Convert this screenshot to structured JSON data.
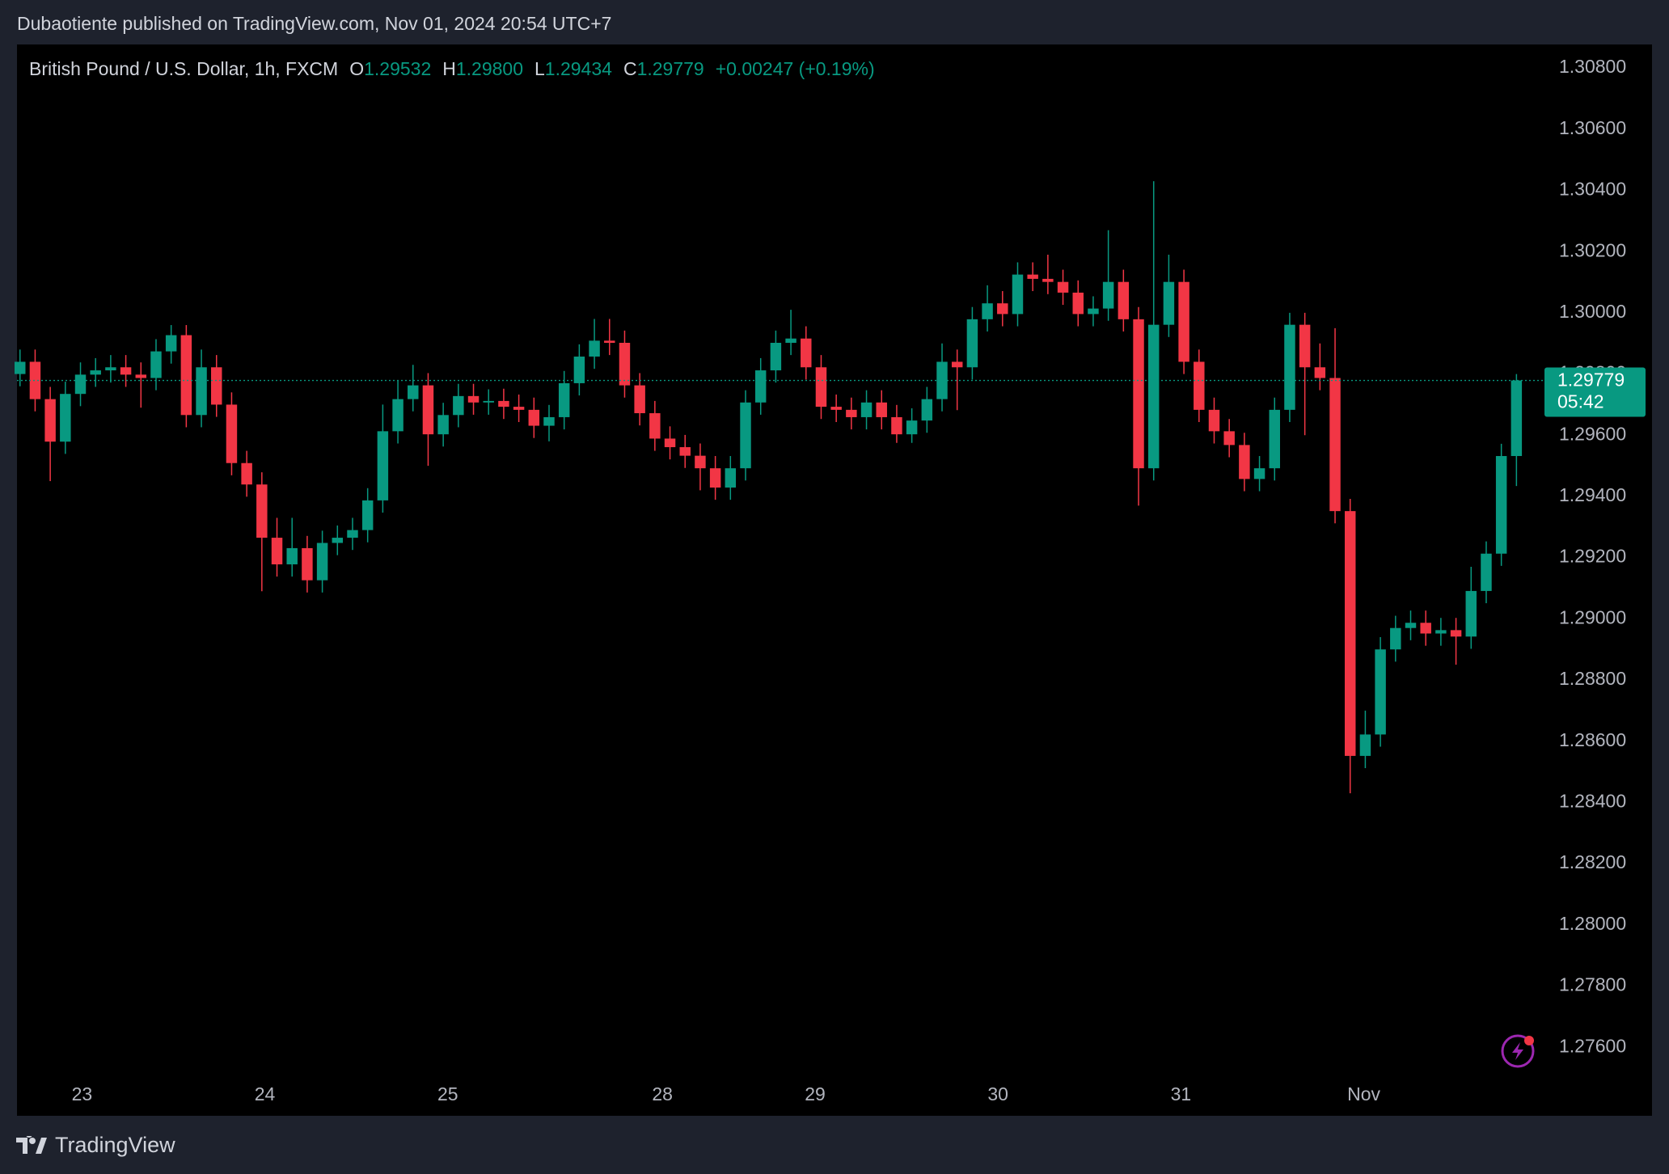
{
  "header": {
    "published": "Dubaotiente published on TradingView.com, Nov 01, 2024 20:54 UTC+7"
  },
  "footer": {
    "brand": "TradingView"
  },
  "chart_data": {
    "type": "candlestick",
    "symbol": "British Pound / U.S. Dollar, 1h, FXCM",
    "ohlc_legend": [
      {
        "key": "O",
        "value": "1.29532"
      },
      {
        "key": "H",
        "value": "1.29800"
      },
      {
        "key": "L",
        "value": "1.29434"
      },
      {
        "key": "C",
        "value": "1.29779"
      }
    ],
    "change": "+0.00247 (+0.19%)",
    "up_color": "#089981",
    "down_color": "#f23645",
    "grid": false,
    "last_price": 1.29779,
    "countdown": "05:42",
    "xlim": [
      -0.2,
      100.8
    ],
    "ylim": [
      1.27508,
      1.30877
    ],
    "xticks": [
      {
        "value": 4.1,
        "label": "23"
      },
      {
        "value": 16.2,
        "label": "24"
      },
      {
        "value": 28.3,
        "label": "25"
      },
      {
        "value": 42.5,
        "label": "28"
      },
      {
        "value": 52.6,
        "label": "29"
      },
      {
        "value": 64.7,
        "label": "30"
      },
      {
        "value": 76.8,
        "label": "31"
      },
      {
        "value": 88.9,
        "label": "Nov"
      }
    ],
    "yticks": [
      {
        "value": 1.308,
        "label": "1.30800"
      },
      {
        "value": 1.306,
        "label": "1.30600"
      },
      {
        "value": 1.304,
        "label": "1.30400"
      },
      {
        "value": 1.302,
        "label": "1.30200"
      },
      {
        "value": 1.3,
        "label": "1.30000"
      },
      {
        "value": 1.298,
        "label": "1.29800"
      },
      {
        "value": 1.296,
        "label": "1.29600"
      },
      {
        "value": 1.294,
        "label": "1.29400"
      },
      {
        "value": 1.292,
        "label": "1.29200"
      },
      {
        "value": 1.29,
        "label": "1.29000"
      },
      {
        "value": 1.288,
        "label": "1.28800"
      },
      {
        "value": 1.286,
        "label": "1.28600"
      },
      {
        "value": 1.284,
        "label": "1.28400"
      },
      {
        "value": 1.282,
        "label": "1.28200"
      },
      {
        "value": 1.28,
        "label": "1.28000"
      },
      {
        "value": 1.278,
        "label": "1.27800"
      },
      {
        "value": 1.276,
        "label": "1.27600"
      }
    ],
    "open": [
      1.298,
      1.2984,
      1.29718,
      1.29579,
      1.29735,
      1.29798,
      1.29812,
      1.29822,
      1.29798,
      1.29787,
      1.29874,
      1.29927,
      1.29666,
      1.29822,
      1.297,
      1.29509,
      1.29439,
      1.29265,
      1.29178,
      1.29231,
      1.29126,
      1.29248,
      1.29265,
      1.2929,
      1.29387,
      1.29613,
      1.29718,
      1.29763,
      1.29603,
      1.29666,
      1.29728,
      1.29707,
      1.29712,
      1.29693,
      1.29683,
      1.29631,
      1.29659,
      1.2977,
      1.29857,
      1.29909,
      1.29902,
      1.29763,
      1.29672,
      1.29589,
      1.29561,
      1.29533,
      1.29492,
      1.29429,
      1.29492,
      1.29707,
      1.29812,
      1.29902,
      1.29916,
      1.29822,
      1.29693,
      1.29683,
      1.29659,
      1.29707,
      1.29659,
      1.29603,
      1.29648,
      1.29718,
      1.2984,
      1.29822,
      1.29979,
      1.30031,
      1.29996,
      1.30125,
      1.30111,
      1.30101,
      1.30066,
      1.29996,
      1.30014,
      1.30101,
      1.29979,
      1.29492,
      1.29961,
      1.30101,
      1.2984,
      1.29683,
      1.29613,
      1.29568,
      1.29457,
      1.29492,
      1.29683,
      1.29961,
      1.29822,
      1.29787,
      1.29352,
      1.28552,
      1.28622,
      1.289,
      1.2897,
      1.28987,
      1.28952,
      1.28963,
      1.28942,
      1.29091,
      1.29213,
      1.29532
    ],
    "high": [
      1.2988,
      1.2988,
      1.29758,
      1.29775,
      1.29838,
      1.29852,
      1.29862,
      1.29862,
      1.29838,
      1.29914,
      1.2996,
      1.2996,
      1.2988,
      1.29862,
      1.2974,
      1.29549,
      1.29479,
      1.2933,
      1.2933,
      1.29271,
      1.29288,
      1.29305,
      1.2933,
      1.29427,
      1.297,
      1.2978,
      1.2983,
      1.29803,
      1.29706,
      1.29768,
      1.29768,
      1.2975,
      1.29752,
      1.29733,
      1.29723,
      1.29699,
      1.2981,
      1.29897,
      1.2998,
      1.2998,
      1.29942,
      1.29803,
      1.29712,
      1.29629,
      1.29601,
      1.29573,
      1.29532,
      1.29532,
      1.29747,
      1.29852,
      1.29942,
      1.3001,
      1.29956,
      1.29862,
      1.29733,
      1.29723,
      1.29747,
      1.29747,
      1.29699,
      1.29688,
      1.29758,
      1.299,
      1.2988,
      1.30019,
      1.3009,
      1.30071,
      1.30165,
      1.30165,
      1.3019,
      1.30141,
      1.30106,
      1.30054,
      1.3027,
      1.30141,
      1.30019,
      1.3043,
      1.3019,
      1.30141,
      1.2988,
      1.29723,
      1.29653,
      1.29608,
      1.29532,
      1.29723,
      1.3,
      1.3,
      1.299,
      1.2995,
      1.29392,
      1.287,
      1.2894,
      1.2901,
      1.29027,
      1.29027,
      1.29003,
      1.29003,
      1.2917,
      1.29253,
      1.29572,
      1.298
    ],
    "low": [
      1.2976,
      1.29678,
      1.2945,
      1.29539,
      1.29695,
      1.29758,
      1.29772,
      1.29758,
      1.2969,
      1.29747,
      1.29834,
      1.29626,
      1.29626,
      1.2966,
      1.29469,
      1.29399,
      1.2909,
      1.29138,
      1.29138,
      1.29086,
      1.29086,
      1.29208,
      1.29225,
      1.2925,
      1.29347,
      1.29573,
      1.29678,
      1.295,
      1.29563,
      1.29626,
      1.29667,
      1.29667,
      1.29653,
      1.29643,
      1.29591,
      1.2958,
      1.29619,
      1.2973,
      1.29817,
      1.29862,
      1.29723,
      1.29632,
      1.29549,
      1.29521,
      1.29493,
      1.2942,
      1.29389,
      1.29389,
      1.29452,
      1.29667,
      1.29772,
      1.29862,
      1.29782,
      1.29653,
      1.29643,
      1.29619,
      1.29619,
      1.29619,
      1.29575,
      1.29575,
      1.29608,
      1.29678,
      1.29682,
      1.29782,
      1.29939,
      1.29956,
      1.29956,
      1.30071,
      1.30061,
      1.30026,
      1.29956,
      1.29956,
      1.29974,
      1.29939,
      1.2937,
      1.29452,
      1.29921,
      1.298,
      1.29643,
      1.29573,
      1.29528,
      1.29417,
      1.29417,
      1.29452,
      1.29643,
      1.296,
      1.29747,
      1.29312,
      1.2843,
      1.28512,
      1.28582,
      1.2886,
      1.2893,
      1.28912,
      1.28912,
      1.2885,
      1.28902,
      1.29051,
      1.29173,
      1.29434
    ],
    "close": [
      1.2984,
      1.29718,
      1.29579,
      1.29735,
      1.29798,
      1.29812,
      1.29822,
      1.29798,
      1.29787,
      1.29874,
      1.29927,
      1.29666,
      1.29822,
      1.297,
      1.29509,
      1.29439,
      1.29265,
      1.29178,
      1.29231,
      1.29126,
      1.29248,
      1.29265,
      1.2929,
      1.29387,
      1.29613,
      1.29718,
      1.29763,
      1.29603,
      1.29666,
      1.29728,
      1.29707,
      1.29712,
      1.29693,
      1.29683,
      1.29631,
      1.29659,
      1.2977,
      1.29857,
      1.29909,
      1.29902,
      1.29763,
      1.29672,
      1.29589,
      1.29561,
      1.29533,
      1.29492,
      1.29429,
      1.29492,
      1.29707,
      1.29812,
      1.29902,
      1.29916,
      1.29822,
      1.29693,
      1.29683,
      1.29659,
      1.29707,
      1.29659,
      1.29603,
      1.29648,
      1.29718,
      1.2984,
      1.29822,
      1.29979,
      1.30031,
      1.29996,
      1.30125,
      1.30111,
      1.30101,
      1.30066,
      1.29996,
      1.30014,
      1.30101,
      1.29979,
      1.29492,
      1.29961,
      1.30101,
      1.2984,
      1.29683,
      1.29613,
      1.29568,
      1.29457,
      1.29492,
      1.29683,
      1.29961,
      1.29822,
      1.29787,
      1.29352,
      1.28552,
      1.28622,
      1.289,
      1.2897,
      1.28987,
      1.28952,
      1.28963,
      1.28942,
      1.29091,
      1.29213,
      1.29532,
      1.29779
    ]
  }
}
